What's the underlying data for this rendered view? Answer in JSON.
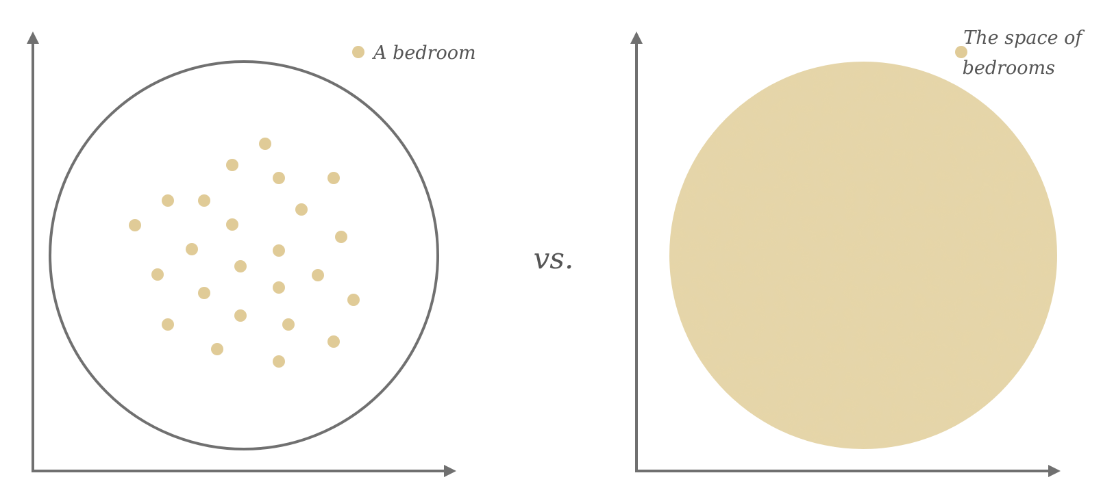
{
  "left_panel": {
    "legend_label": "A bedroom",
    "dot_color": "#e0cb97",
    "circle_color": "#707070"
  },
  "divider": {
    "label": "vs."
  },
  "right_panel": {
    "legend_lines": [
      "The space of",
      "bedrooms"
    ],
    "fill_color": "#e6d6a8"
  },
  "axis_color": "#707070"
}
